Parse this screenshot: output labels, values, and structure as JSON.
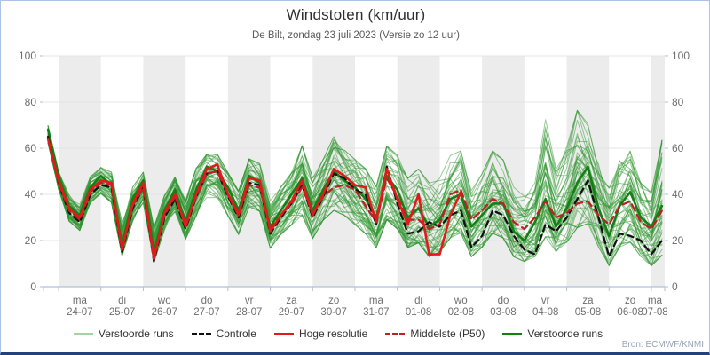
{
  "title": "Windstoten (km/uur)",
  "subtitle": "De Bilt, zondag 23 juli 2023 (Versie zo 12 uur)",
  "attribution": "Bron: ECMWF/KNMI",
  "legend": [
    {
      "label": "Verstoorde runs",
      "style": "thin",
      "color": "#a6d3a6"
    },
    {
      "label": "Controle",
      "style": "dashed",
      "color": "#111111"
    },
    {
      "label": "Hoge resolutie",
      "style": "solid",
      "color": "#e01b1b"
    },
    {
      "label": "Middelste (P50)",
      "style": "dashed",
      "color": "#bf2026"
    },
    {
      "label": "Verstoorde runs",
      "style": "thick",
      "color": "#157f15"
    }
  ],
  "chart_data": {
    "type": "line",
    "title": "Windstoten (km/uur)",
    "subtitle": "De Bilt, zondag 23 juli 2023 (Versie zo 12 uur)",
    "ylim": [
      0,
      100
    ],
    "yticks": [
      0,
      20,
      40,
      60,
      80,
      100
    ],
    "grid": true,
    "band_color": "#ececec",
    "grid_color": "#e4e4e4",
    "axis_color": "#b3bfd6",
    "tick_label_color": "#6e6e6e",
    "x_days": [
      {
        "day": "ma",
        "date": "24-07",
        "shaded": true
      },
      {
        "day": "di",
        "date": "25-07",
        "shaded": false
      },
      {
        "day": "wo",
        "date": "26-07",
        "shaded": true
      },
      {
        "day": "do",
        "date": "27-07",
        "shaded": false
      },
      {
        "day": "vr",
        "date": "28-07",
        "shaded": true
      },
      {
        "day": "za",
        "date": "29-07",
        "shaded": false
      },
      {
        "day": "zo",
        "date": "30-07",
        "shaded": true
      },
      {
        "day": "ma",
        "date": "31-07",
        "shaded": false
      },
      {
        "day": "di",
        "date": "01-08",
        "shaded": true
      },
      {
        "day": "wo",
        "date": "02-08",
        "shaded": false
      },
      {
        "day": "do",
        "date": "03-08",
        "shaded": true
      },
      {
        "day": "vr",
        "date": "04-08",
        "shaded": false
      },
      {
        "day": "za",
        "date": "05-08",
        "shaded": true
      },
      {
        "day": "zo",
        "date": "06-08",
        "shaded": false
      },
      {
        "day": "ma",
        "date": "07-08",
        "shaded": true
      }
    ],
    "t_start_days": -0.25,
    "t_step_days": 0.25,
    "series": [
      {
        "name": "Hoge resolutie",
        "color": "#e01b1b",
        "width": 2.6,
        "dash": null,
        "values": [
          64,
          46,
          34,
          30,
          42,
          46,
          45,
          16,
          36,
          45,
          12,
          32,
          40,
          26,
          40,
          51,
          53,
          40,
          31,
          47,
          46,
          24,
          31,
          37,
          46,
          31,
          40,
          51,
          48,
          44,
          43,
          28,
          51,
          38,
          27,
          40,
          14,
          14,
          31,
          41
        ]
      },
      {
        "name": "Controle",
        "color": "#111111",
        "width": 2.3,
        "dash": "7 5",
        "values": [
          65,
          45,
          32,
          28,
          40,
          44,
          43,
          15,
          34,
          43,
          11,
          30,
          38,
          25,
          39,
          49,
          50,
          39,
          30,
          45,
          44,
          23,
          30,
          36,
          44,
          30,
          39,
          49,
          47,
          42,
          40,
          27,
          52,
          36,
          23,
          24,
          28,
          26,
          31,
          33,
          17,
          22,
          33,
          31,
          22,
          16,
          14,
          27,
          24,
          30,
          38,
          46,
          30,
          13,
          23,
          22,
          20,
          14,
          20
        ]
      },
      {
        "name": "Middelste (P50)",
        "color": "#bf2026",
        "width": 2.3,
        "dash": "8 5",
        "values": [
          64,
          45,
          33,
          29,
          41,
          45,
          44,
          16,
          35,
          43,
          13,
          31,
          39,
          27,
          39,
          49,
          50,
          40,
          32,
          44,
          43,
          25,
          31,
          36,
          43,
          32,
          39,
          43,
          44,
          42,
          35,
          28,
          47,
          39,
          29,
          29,
          25,
          27,
          40,
          42,
          29,
          33,
          38,
          36,
          28,
          25,
          30,
          37,
          30,
          32,
          36,
          37,
          31,
          27,
          35,
          37,
          28,
          25,
          33
        ]
      },
      {
        "name": "Verstoorde runs (uitgelicht)",
        "color": "#157f15",
        "width": 2.6,
        "dash": null,
        "values": [
          68,
          48,
          35,
          31,
          43,
          48,
          44,
          18,
          38,
          46,
          15,
          33,
          42,
          28,
          42,
          52,
          50,
          43,
          33,
          48,
          45,
          26,
          33,
          40,
          47,
          33,
          42,
          50,
          46,
          43,
          38,
          30,
          48,
          42,
          30,
          34,
          26,
          29,
          38,
          40,
          26,
          31,
          36,
          36,
          24,
          20,
          28,
          38,
          26,
          34,
          45,
          52,
          34,
          22,
          35,
          41,
          30,
          26,
          35
        ]
      }
    ],
    "ensemble": {
      "name": "Verstoorde runs",
      "n_members": 48,
      "color": "#2f962f",
      "opacity": 0.5,
      "width": 1,
      "min": [
        62,
        42,
        28,
        24,
        36,
        40,
        36,
        13,
        28,
        36,
        10,
        24,
        32,
        20,
        30,
        38,
        38,
        30,
        22,
        34,
        32,
        16,
        22,
        26,
        30,
        20,
        28,
        32,
        30,
        26,
        22,
        16,
        28,
        24,
        16,
        18,
        12,
        14,
        20,
        22,
        12,
        16,
        22,
        20,
        12,
        10,
        12,
        20,
        14,
        18,
        24,
        26,
        16,
        8,
        16,
        18,
        12,
        8,
        12
      ],
      "max": [
        70,
        50,
        40,
        36,
        48,
        52,
        50,
        28,
        44,
        50,
        26,
        40,
        48,
        38,
        52,
        58,
        58,
        50,
        42,
        56,
        54,
        38,
        44,
        50,
        62,
        48,
        56,
        66,
        60,
        56,
        52,
        44,
        62,
        58,
        48,
        52,
        46,
        48,
        58,
        60,
        44,
        50,
        60,
        56,
        44,
        40,
        46,
        74,
        52,
        62,
        78,
        72,
        56,
        44,
        56,
        60,
        46,
        42,
        65
      ]
    }
  }
}
